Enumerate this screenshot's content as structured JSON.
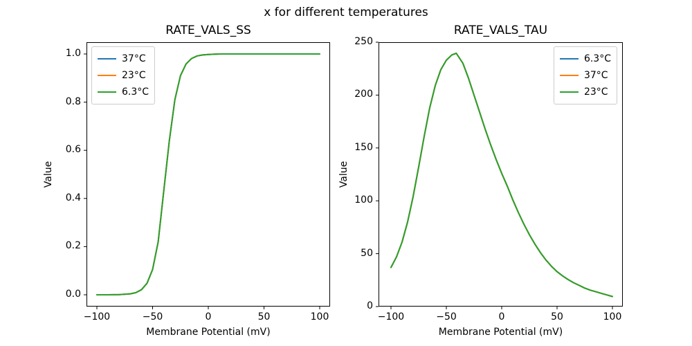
{
  "figure": {
    "suptitle": "x for different temperatures",
    "background": "#ffffff"
  },
  "chart_data": [
    {
      "type": "line",
      "title": "RATE_VALS_SS",
      "xlabel": "Membrane Potential (mV)",
      "ylabel": "Value",
      "xlim": [
        -110,
        110
      ],
      "ylim": [
        -0.05,
        1.05
      ],
      "grid": false,
      "xticks": [
        -100,
        -50,
        0,
        50,
        100
      ],
      "xtick_labels": [
        "−100",
        "−50",
        "0",
        "50",
        "100"
      ],
      "yticks": [
        0,
        0.2,
        0.4,
        0.6,
        0.8,
        1
      ],
      "ytick_labels": [
        "0.0",
        "0.2",
        "0.4",
        "0.6",
        "0.8",
        "1.0"
      ],
      "legend": {
        "position": "upper-left",
        "entries": [
          {
            "label": "37°C",
            "color": "#1f77b4"
          },
          {
            "label": "23°C",
            "color": "#ff7f0e"
          },
          {
            "label": "6.3°C",
            "color": "#2ca02c"
          }
        ]
      },
      "note": "All three temperature curves are identical and overlap exactly; only the last-drawn green curve is visible.",
      "x": [
        -100,
        -90,
        -80,
        -70,
        -65,
        -60,
        -55,
        -50,
        -45,
        -40,
        -35,
        -30,
        -25,
        -20,
        -15,
        -10,
        -5,
        0,
        10,
        20,
        30,
        40,
        50,
        60,
        70,
        80,
        90,
        100
      ],
      "series": [
        {
          "name": "37°C",
          "color": "#1f77b4",
          "values": [
            0,
            0,
            0.001,
            0.004,
            0.009,
            0.021,
            0.048,
            0.105,
            0.22,
            0.43,
            0.64,
            0.81,
            0.91,
            0.958,
            0.981,
            0.992,
            0.996,
            0.998,
            1,
            1,
            1,
            1,
            1,
            1,
            1,
            1,
            1,
            1
          ]
        },
        {
          "name": "23°C",
          "color": "#ff7f0e",
          "values": [
            0,
            0,
            0.001,
            0.004,
            0.009,
            0.021,
            0.048,
            0.105,
            0.22,
            0.43,
            0.64,
            0.81,
            0.91,
            0.958,
            0.981,
            0.992,
            0.996,
            0.998,
            1,
            1,
            1,
            1,
            1,
            1,
            1,
            1,
            1,
            1
          ]
        },
        {
          "name": "6.3°C",
          "color": "#2ca02c",
          "values": [
            0,
            0,
            0.001,
            0.004,
            0.009,
            0.021,
            0.048,
            0.105,
            0.22,
            0.43,
            0.64,
            0.81,
            0.91,
            0.958,
            0.981,
            0.992,
            0.996,
            0.998,
            1,
            1,
            1,
            1,
            1,
            1,
            1,
            1,
            1,
            1
          ]
        }
      ]
    },
    {
      "type": "line",
      "title": "RATE_VALS_TAU",
      "xlabel": "Membrane Potential (mV)",
      "ylabel": "Value",
      "xlim": [
        -110,
        110
      ],
      "ylim": [
        0,
        250
      ],
      "grid": false,
      "xticks": [
        -100,
        -50,
        0,
        50,
        100
      ],
      "xtick_labels": [
        "−100",
        "−50",
        "0",
        "50",
        "100"
      ],
      "yticks": [
        0,
        50,
        100,
        150,
        200,
        250
      ],
      "ytick_labels": [
        "0",
        "50",
        "100",
        "150",
        "200",
        "250"
      ],
      "legend": {
        "position": "upper-right",
        "entries": [
          {
            "label": "6.3°C",
            "color": "#1f77b4"
          },
          {
            "label": "37°C",
            "color": "#ff7f0e"
          },
          {
            "label": "23°C",
            "color": "#2ca02c"
          }
        ]
      },
      "note": "All three temperature curves are identical and overlap exactly; peak ≈ 239.5 at ≈ −41 mV; only the last-drawn green curve is visible.",
      "x": [
        -100,
        -95,
        -90,
        -85,
        -80,
        -75,
        -70,
        -65,
        -60,
        -55,
        -50,
        -45,
        -41,
        -35,
        -30,
        -25,
        -20,
        -15,
        -10,
        -5,
        0,
        5,
        10,
        15,
        20,
        25,
        30,
        35,
        40,
        45,
        50,
        55,
        60,
        65,
        70,
        75,
        80,
        85,
        90,
        95,
        100
      ],
      "series": [
        {
          "name": "6.3°C",
          "color": "#1f77b4",
          "values": [
            37,
            47,
            61,
            80,
            104,
            132,
            161,
            188,
            209,
            224,
            233,
            238,
            239.5,
            230,
            216,
            200,
            184,
            168,
            153,
            139,
            126,
            114,
            101,
            89,
            78,
            68,
            59,
            51,
            44,
            38,
            33,
            29,
            25.5,
            22.5,
            20,
            17.5,
            15.5,
            14,
            12.5,
            11,
            9.5
          ]
        },
        {
          "name": "37°C",
          "color": "#ff7f0e",
          "values": [
            37,
            47,
            61,
            80,
            104,
            132,
            161,
            188,
            209,
            224,
            233,
            238,
            239.5,
            230,
            216,
            200,
            184,
            168,
            153,
            139,
            126,
            114,
            101,
            89,
            78,
            68,
            59,
            51,
            44,
            38,
            33,
            29,
            25.5,
            22.5,
            20,
            17.5,
            15.5,
            14,
            12.5,
            11,
            9.5
          ]
        },
        {
          "name": "23°C",
          "color": "#2ca02c",
          "values": [
            37,
            47,
            61,
            80,
            104,
            132,
            161,
            188,
            209,
            224,
            233,
            238,
            239.5,
            230,
            216,
            200,
            184,
            168,
            153,
            139,
            126,
            114,
            101,
            89,
            78,
            68,
            59,
            51,
            44,
            38,
            33,
            29,
            25.5,
            22.5,
            20,
            17.5,
            15.5,
            14,
            12.5,
            11,
            9.5
          ]
        }
      ]
    }
  ]
}
